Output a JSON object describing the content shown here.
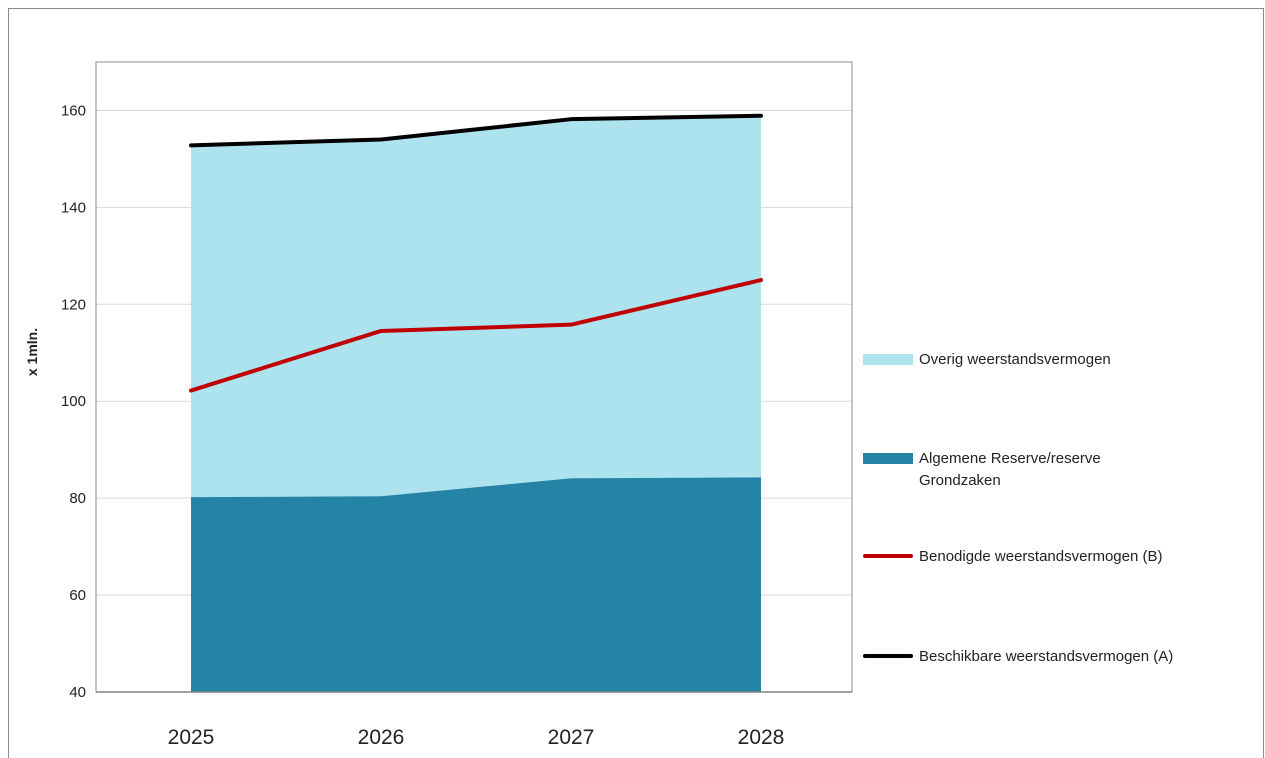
{
  "chart_data": {
    "type": "area",
    "title": "",
    "xlabel": "",
    "ylabel": "x 1mln.",
    "x": [
      "2025",
      "2026",
      "2027",
      "2028"
    ],
    "ylim": [
      40,
      170
    ],
    "yticks": [
      40,
      60,
      80,
      100,
      120,
      140,
      160
    ],
    "grid": true,
    "legend_position": "right",
    "series": [
      {
        "name": "Overig weerstandsvermogen",
        "kind": "area-stacked",
        "color": "#ade3ef",
        "values": [
          72.6,
          73.6,
          74.1,
          74.6
        ]
      },
      {
        "name": "Algemene Reserve/reserve Grondzaken",
        "kind": "area-stacked",
        "color": "#2584a6",
        "values": [
          80.2,
          80.4,
          84.1,
          84.3
        ]
      },
      {
        "name": "Benodigde weerstandsvermogen (B)",
        "kind": "line",
        "color": "#c00000",
        "values": [
          102.2,
          114.5,
          115.8,
          125.0
        ]
      },
      {
        "name": "Beschikbare weerstandsvermogen (A)",
        "kind": "line",
        "color": "#000000",
        "values": [
          152.8,
          154.0,
          158.2,
          158.9
        ]
      }
    ]
  }
}
